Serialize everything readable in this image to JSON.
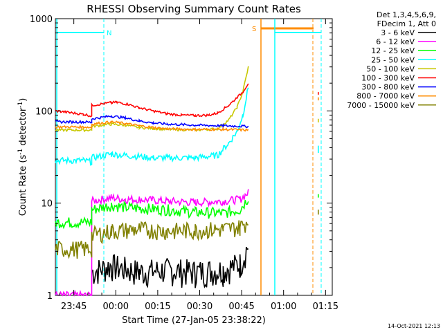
{
  "chart_data": {
    "type": "line",
    "title": "RHESSI Observing Summary Count Rates",
    "xlabel": "Start Time (27-Jan-05 23:38:22)",
    "ylabel": "Count Rate (s",
    "ylabel_sup1": "-1",
    "ylabel_mid": " detector",
    "ylabel_sup2": "-1",
    "ylabel_end": ")",
    "yscale": "log",
    "ylim": [
      1,
      1000
    ],
    "xlim_minutes": [
      0,
      99
    ],
    "x_unit": "minutes since 23:38:22",
    "xticks": [
      {
        "label": "23:45",
        "x": 6.6
      },
      {
        "label": "00:00",
        "x": 21.6
      },
      {
        "label": "00:15",
        "x": 36.6
      },
      {
        "label": "00:30",
        "x": 51.6
      },
      {
        "label": "00:45",
        "x": 66.6
      },
      {
        "label": "01:00",
        "x": 81.6
      },
      {
        "label": "01:15",
        "x": 96.6
      }
    ],
    "yticks": [
      {
        "label": "1",
        "v": 1
      },
      {
        "label": "10",
        "v": 10
      },
      {
        "label": "100",
        "v": 100
      },
      {
        "label": "1000",
        "v": 1000
      }
    ],
    "legend_header": [
      "Det 1,3,4,5,6,9,",
      "FDecim 1, Att 0"
    ],
    "legend_position": "top-right, outside plot",
    "series": [
      {
        "name": "3 - 6 keV",
        "color": "#000000",
        "points": [
          [
            13,
            1.8
          ],
          [
            20,
            2.1
          ],
          [
            30,
            1.8
          ],
          [
            40,
            1.9
          ],
          [
            50,
            1.8
          ],
          [
            60,
            1.9
          ],
          [
            66,
            2.2
          ],
          [
            69,
            3.5
          ]
        ]
      },
      {
        "name": "6 - 12 keV",
        "color": "#ff00ff",
        "points": [
          [
            0,
            1
          ],
          [
            13,
            1
          ],
          [
            13,
            10.5
          ],
          [
            20,
            11.5
          ],
          [
            25,
            11
          ],
          [
            30,
            11
          ],
          [
            40,
            10.5
          ],
          [
            50,
            10.2
          ],
          [
            60,
            10.5
          ],
          [
            66,
            11
          ],
          [
            69,
            13
          ]
        ]
      },
      {
        "name": "12 - 25 keV",
        "color": "#00ff00",
        "points": [
          [
            0,
            6.2
          ],
          [
            13,
            6.2
          ],
          [
            13,
            8.5
          ],
          [
            20,
            9.5
          ],
          [
            25,
            9
          ],
          [
            30,
            8.8
          ],
          [
            40,
            8.5
          ],
          [
            50,
            8
          ],
          [
            60,
            7.8
          ],
          [
            66,
            8.5
          ],
          [
            69,
            11.5
          ],
          [
            94,
            11.5
          ],
          [
            94,
            12.5
          ]
        ]
      },
      {
        "name": "25 - 50 keV",
        "color": "#00ffff",
        "points": [
          [
            0,
            29
          ],
          [
            10,
            29
          ],
          [
            13,
            28
          ],
          [
            13,
            31
          ],
          [
            20,
            34
          ],
          [
            25,
            33
          ],
          [
            30,
            32
          ],
          [
            35,
            31
          ],
          [
            40,
            31
          ],
          [
            50,
            31
          ],
          [
            58,
            33
          ],
          [
            62,
            45
          ],
          [
            65,
            60
          ],
          [
            67,
            90
          ],
          [
            69,
            180
          ],
          [
            94,
            35
          ],
          [
            94,
            42
          ]
        ]
      },
      {
        "name": "50 - 100 keV",
        "color": "#c8c800",
        "points": [
          [
            0,
            62
          ],
          [
            13,
            62
          ],
          [
            13,
            68
          ],
          [
            20,
            72
          ],
          [
            25,
            70
          ],
          [
            30,
            66
          ],
          [
            40,
            63
          ],
          [
            50,
            62
          ],
          [
            58,
            64
          ],
          [
            62,
            80
          ],
          [
            65,
            110
          ],
          [
            67,
            160
          ],
          [
            69,
            300
          ],
          [
            94,
            75
          ],
          [
            94,
            82
          ]
        ]
      },
      {
        "name": "100 - 300 keV",
        "color": "#ff0000",
        "points": [
          [
            0,
            100
          ],
          [
            5,
            96
          ],
          [
            10,
            92
          ],
          [
            13,
            88
          ],
          [
            13,
            115
          ],
          [
            20,
            123
          ],
          [
            22,
            124
          ],
          [
            26,
            118
          ],
          [
            30,
            108
          ],
          [
            35,
            100
          ],
          [
            40,
            93
          ],
          [
            45,
            90
          ],
          [
            50,
            89
          ],
          [
            55,
            90
          ],
          [
            58,
            95
          ],
          [
            62,
            115
          ],
          [
            65,
            140
          ],
          [
            67,
            160
          ],
          [
            69,
            200
          ],
          [
            94,
            150
          ],
          [
            94,
            160
          ]
        ]
      },
      {
        "name": "300 - 800 keV",
        "color": "#0000ff",
        "points": [
          [
            0,
            76
          ],
          [
            10,
            76
          ],
          [
            13,
            75
          ],
          [
            13,
            82
          ],
          [
            20,
            88
          ],
          [
            25,
            84
          ],
          [
            30,
            78
          ],
          [
            35,
            74
          ],
          [
            40,
            72
          ],
          [
            45,
            71
          ],
          [
            50,
            70
          ],
          [
            60,
            69
          ],
          [
            69,
            68
          ]
        ]
      },
      {
        "name": "800 - 7000 keV",
        "color": "#ff8c00",
        "points": [
          [
            0,
            67
          ],
          [
            10,
            67
          ],
          [
            13,
            66
          ],
          [
            13,
            72
          ],
          [
            20,
            76
          ],
          [
            25,
            73
          ],
          [
            30,
            69
          ],
          [
            35,
            66
          ],
          [
            40,
            64
          ],
          [
            50,
            63
          ],
          [
            60,
            63
          ],
          [
            69,
            62
          ],
          [
            94,
            130
          ],
          [
            94,
            140
          ]
        ]
      },
      {
        "name": "7000 - 15000 keV",
        "color": "#808000",
        "points": [
          [
            0,
            3.2
          ],
          [
            13,
            3.2
          ],
          [
            13,
            4.5
          ],
          [
            20,
            5
          ],
          [
            30,
            5.2
          ],
          [
            40,
            5
          ],
          [
            50,
            5.1
          ],
          [
            60,
            5.2
          ],
          [
            66,
            5.5
          ],
          [
            69,
            6.5
          ],
          [
            94,
            7.5
          ],
          [
            94,
            8.5
          ]
        ]
      }
    ],
    "annotations": [
      {
        "label": "N",
        "color": "#00ffff"
      },
      {
        "label": "S",
        "color": "#ff8c00"
      }
    ],
    "footer_date": "14-Oct-2021 12:13"
  }
}
